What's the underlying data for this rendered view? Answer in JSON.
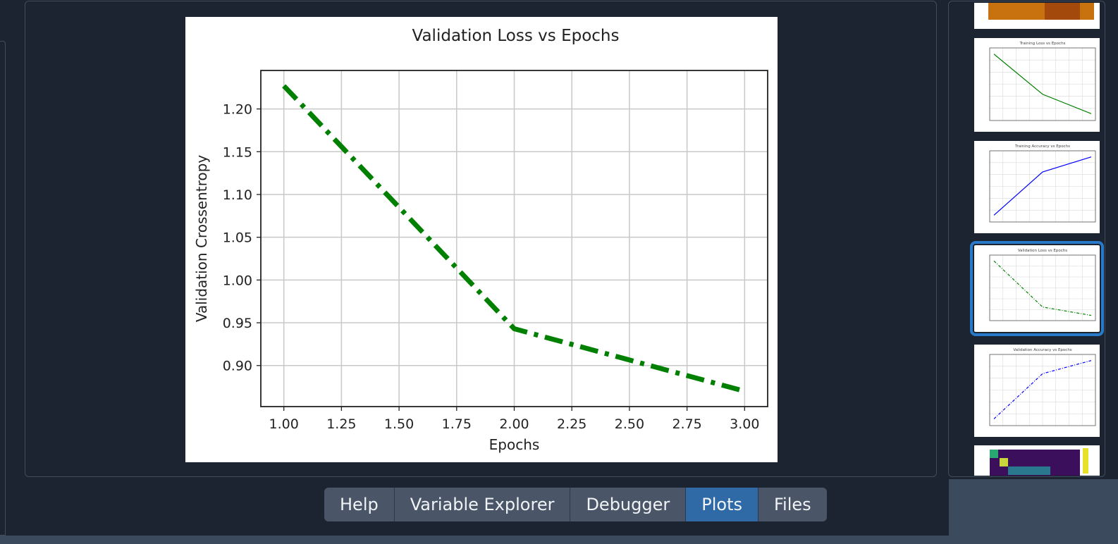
{
  "tabs": [
    {
      "label": "Help",
      "active": false
    },
    {
      "label": "Variable Explorer",
      "active": false
    },
    {
      "label": "Debugger",
      "active": false
    },
    {
      "label": "Plots",
      "active": true
    },
    {
      "label": "Files",
      "active": false
    }
  ],
  "colors": {
    "background": "#1b2430",
    "active_tab": "#2f6aa6",
    "selected_thumbnail": "#2979c9",
    "series": "#008000"
  },
  "thumbnails": [
    {
      "title": "",
      "kind": "heatmap-partial",
      "selected": false
    },
    {
      "title": "Training Loss vs Epochs",
      "kind": "line",
      "color": "#008000",
      "selected": false
    },
    {
      "title": "Training Accuracy vs Epochs",
      "kind": "line",
      "color": "#0000ff",
      "selected": false
    },
    {
      "title": "Validation Loss vs Epochs",
      "kind": "line",
      "color": "#008000",
      "selected": true
    },
    {
      "title": "Validation Accuracy vs Epochs",
      "kind": "line",
      "color": "#0000ff",
      "selected": false
    },
    {
      "title": "",
      "kind": "heatmap-partial",
      "selected": false
    }
  ],
  "chart_data": {
    "type": "line",
    "title": "Validation Loss vs Epochs",
    "xlabel": "Epochs",
    "ylabel": "Validation Crossentropy",
    "x": [
      1,
      2,
      3
    ],
    "series": [
      {
        "values": [
          1.227,
          0.943,
          0.87
        ],
        "color": "#008000",
        "linestyle": "dashdot"
      }
    ],
    "xlim": [
      0.9,
      3.1
    ],
    "ylim": [
      0.852,
      1.245
    ],
    "xticks": [
      1.0,
      1.25,
      1.5,
      1.75,
      2.0,
      2.25,
      2.5,
      2.75,
      3.0
    ],
    "xtick_labels": [
      "1.00",
      "1.25",
      "1.50",
      "1.75",
      "2.00",
      "2.25",
      "2.50",
      "2.75",
      "3.00"
    ],
    "yticks": [
      0.9,
      0.95,
      1.0,
      1.05,
      1.1,
      1.15,
      1.2
    ],
    "ytick_labels": [
      "0.90",
      "0.95",
      "1.00",
      "1.05",
      "1.10",
      "1.15",
      "1.20"
    ],
    "grid": true
  }
}
